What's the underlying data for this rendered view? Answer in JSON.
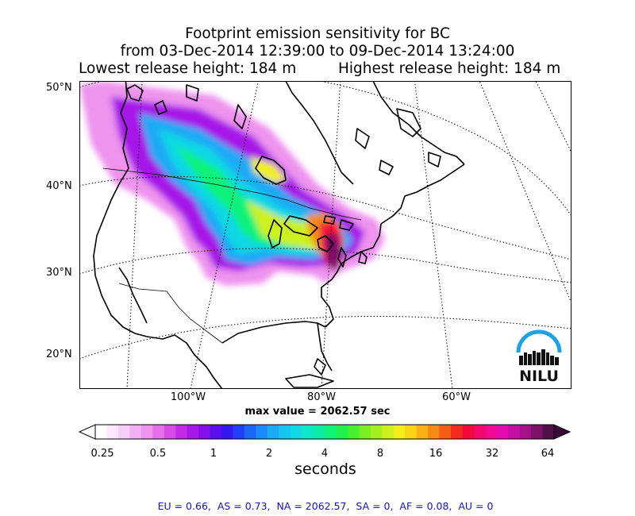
{
  "title": {
    "line1": "Footprint emission sensitivity for BC",
    "line2": "from 03-Dec-2014 12:39:00 to 09-Dec-2014 13:24:00",
    "lowest_release": "Lowest release height: 184 m",
    "highest_release": "Highest release height: 184 m"
  },
  "map": {
    "lat_labels": [
      "50°N",
      "40°N",
      "30°N",
      "20°N"
    ],
    "lon_labels": [
      "100°W",
      "80°W",
      "60°W"
    ],
    "max_value_text": "max value = 2062.57 sec",
    "logo_text": "NILU",
    "colors": {
      "ocean": "#ffffff",
      "coastline": "#000000",
      "graticule": "#000000"
    }
  },
  "colorbar": {
    "tick_labels": [
      "0.25",
      "0.5",
      "1",
      "2",
      "4",
      "8",
      "16",
      "32",
      "64"
    ],
    "units": "seconds",
    "colors": [
      "#ffffff",
      "#fde8fd",
      "#f9cdf9",
      "#f4b0f4",
      "#ee93ee",
      "#e571e8",
      "#d64de6",
      "#c22ae6",
      "#a617e8",
      "#8410ea",
      "#5a10ec",
      "#3318f0",
      "#2040f5",
      "#1c66f8",
      "#1b8af8",
      "#1aaaf5",
      "#15c4ef",
      "#10d8e4",
      "#0fe6cc",
      "#0eeda5",
      "#10f27a",
      "#1ff24e",
      "#47f02f",
      "#78ee24",
      "#a3ef1f",
      "#cdf11c",
      "#f1ef17",
      "#f9d414",
      "#f8b013",
      "#f68a12",
      "#f45d14",
      "#f32a1c",
      "#f30a39",
      "#f1086a",
      "#ef0993",
      "#e40ab0",
      "#c70ea4",
      "#a41188",
      "#7c116a",
      "#521048"
    ],
    "low_arrow_color": "#ffffff",
    "high_arrow_color": "#3a0a3c"
  },
  "footer": {
    "text": "EU = 0.66,  AS = 0.73,  NA = 2062.57,  SA = 0,  AF = 0.08,  AU = 0"
  }
}
